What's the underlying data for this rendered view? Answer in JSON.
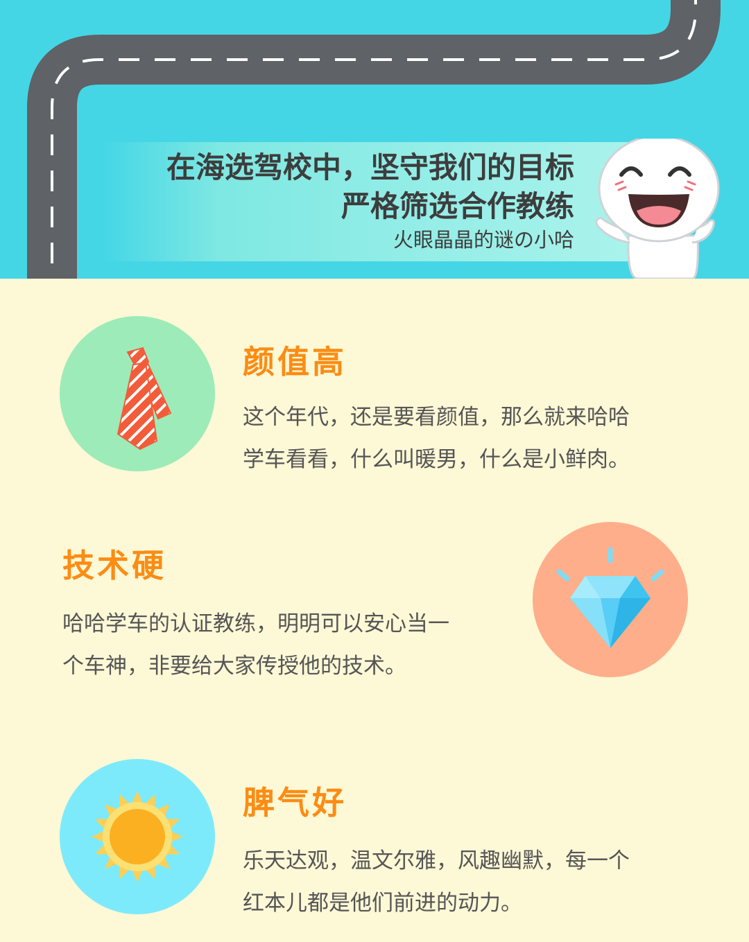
{
  "header": {
    "title_line1": "在海选驾校中，坚守我们的目标",
    "title_line2": "严格筛选合作教练",
    "subtitle": "火眼晶晶的谜の小哈"
  },
  "colors": {
    "header_bg": "#45d6e6",
    "page_bg": "#fdf8d6",
    "road": "#5f6266",
    "feature_title": "#fb8c14",
    "body_text": "#555555"
  },
  "features": [
    {
      "title": "颜值高",
      "lines": [
        "这个年代，还是要看颜值，那么就来哈哈",
        "学车看看，什么叫暖男，什么是小鲜肉。"
      ],
      "icon": "necktie-icon",
      "circle_color": "#9debb8"
    },
    {
      "title": "技术硬",
      "lines": [
        "哈哈学车的认证教练，明明可以安心当一",
        "个车神，非要给大家传授他的技术。"
      ],
      "icon": "diamond-icon",
      "circle_color": "#ffae8b"
    },
    {
      "title": "脾气好",
      "lines": [
        "乐天达观，温文尔雅，风趣幽默，每一个",
        "红本儿都是他们前进的动力。"
      ],
      "icon": "sun-icon",
      "circle_color": "#7deafb"
    }
  ]
}
